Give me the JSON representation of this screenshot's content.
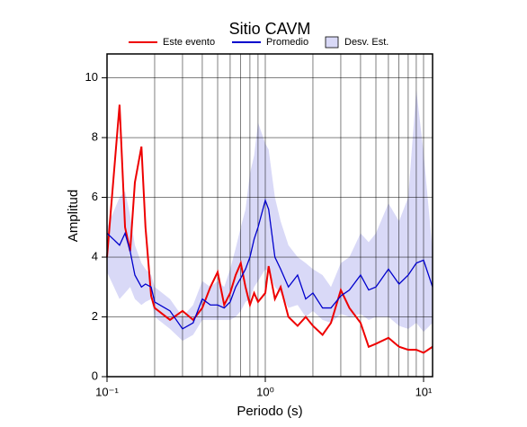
{
  "chart_data": {
    "type": "line",
    "title": "Sitio CAVM",
    "xlabel": "Periodo (s)",
    "ylabel": "Amplitud",
    "xscale": "log",
    "grid": true,
    "xlim": [
      0.1,
      11.4
    ],
    "ylim": [
      0,
      10.8
    ],
    "xticks": [
      {
        "value": 0.1,
        "label": "10⁻¹"
      },
      {
        "value": 1,
        "label": "10⁰"
      },
      {
        "value": 10,
        "label": "10¹"
      }
    ],
    "xgrid": [
      0.2,
      0.3,
      0.4,
      0.5,
      0.6,
      0.7,
      0.8,
      0.9,
      2,
      3,
      4,
      5,
      6,
      7,
      8,
      9
    ],
    "yticks": [
      0,
      2,
      4,
      6,
      8,
      10
    ],
    "x": [
      0.1,
      0.12,
      0.13,
      0.14,
      0.15,
      0.165,
      0.175,
      0.19,
      0.2,
      0.25,
      0.3,
      0.35,
      0.4,
      0.45,
      0.5,
      0.55,
      0.6,
      0.65,
      0.7,
      0.75,
      0.8,
      0.85,
      0.9,
      1.0,
      1.05,
      1.15,
      1.25,
      1.4,
      1.6,
      1.8,
      2.0,
      2.3,
      2.6,
      3.0,
      3.4,
      4.0,
      4.5,
      5.0,
      6.0,
      7.0,
      8.0,
      9.0,
      10.0,
      11.4
    ],
    "series": [
      {
        "name": "Este evento",
        "color": "#ee0000",
        "values": [
          4.0,
          9.1,
          5.0,
          4.2,
          6.5,
          7.7,
          5.0,
          2.7,
          2.3,
          1.9,
          2.2,
          1.9,
          2.3,
          3.0,
          3.5,
          2.4,
          2.8,
          3.4,
          3.8,
          3.0,
          2.4,
          2.8,
          2.5,
          2.8,
          3.7,
          2.6,
          3.0,
          2.0,
          1.7,
          2.0,
          1.7,
          1.4,
          1.8,
          2.9,
          2.3,
          1.8,
          1.0,
          1.1,
          1.3,
          1.0,
          0.9,
          0.9,
          0.8,
          1.0
        ]
      },
      {
        "name": "Promedio",
        "color": "#0000cc",
        "values": [
          4.8,
          4.4,
          4.8,
          4.2,
          3.4,
          3.0,
          3.1,
          3.0,
          2.5,
          2.2,
          1.6,
          1.8,
          2.6,
          2.4,
          2.4,
          2.3,
          2.5,
          3.0,
          3.3,
          3.6,
          4.0,
          4.6,
          5.0,
          5.9,
          5.6,
          4.0,
          3.6,
          3.0,
          3.4,
          2.6,
          2.8,
          2.3,
          2.3,
          2.7,
          2.9,
          3.4,
          2.9,
          3.0,
          3.6,
          3.1,
          3.4,
          3.8,
          3.9,
          3.0
        ]
      },
      {
        "name": "Desv. Est.",
        "color": "#d9d9f7",
        "lower": [
          3.5,
          2.6,
          2.8,
          3.0,
          2.6,
          2.4,
          2.5,
          2.6,
          2.0,
          1.6,
          1.2,
          1.4,
          1.9,
          1.9,
          1.9,
          1.9,
          1.9,
          2.0,
          2.2,
          2.5,
          2.6,
          3.0,
          3.2,
          3.6,
          3.5,
          3.0,
          2.8,
          2.3,
          2.4,
          2.0,
          2.2,
          1.9,
          1.8,
          2.1,
          2.0,
          2.1,
          1.9,
          2.0,
          2.0,
          1.7,
          1.6,
          1.8,
          1.5,
          1.8
        ],
        "upper": [
          5.0,
          6.0,
          6.2,
          5.4,
          4.4,
          3.8,
          3.6,
          3.4,
          3.0,
          2.6,
          2.0,
          2.4,
          3.2,
          3.0,
          3.2,
          3.0,
          3.6,
          4.3,
          5.0,
          5.6,
          6.8,
          7.4,
          8.5,
          7.8,
          7.6,
          6.0,
          5.2,
          4.4,
          4.0,
          3.8,
          3.6,
          3.4,
          3.0,
          3.8,
          4.0,
          4.8,
          4.5,
          4.8,
          5.8,
          5.2,
          6.0,
          9.6,
          7.5,
          4.2
        ]
      }
    ]
  }
}
